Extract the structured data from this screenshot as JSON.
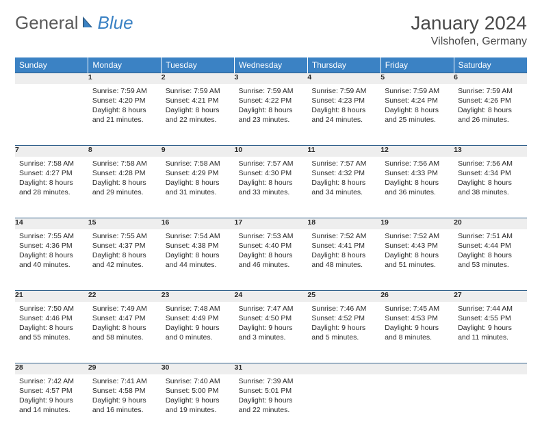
{
  "brand": {
    "general": "General",
    "blue": "Blue"
  },
  "title": "January 2024",
  "location": "Vilshofen, Germany",
  "colors": {
    "header_bg": "#3b82c4",
    "header_text": "#ffffff",
    "daynum_bg": "#eeeeee",
    "daynum_text": "#555555",
    "row_border": "#2f5f8a",
    "body_text": "#2a2a2a",
    "title_text": "#4a4a4a",
    "logo_gray": "#5a5a5a",
    "logo_blue": "#3b82c4"
  },
  "typography": {
    "title_fontsize": 28,
    "location_fontsize": 16,
    "header_fontsize": 12,
    "daynum_fontsize": 12,
    "cell_fontsize": 10.5
  },
  "day_names": [
    "Sunday",
    "Monday",
    "Tuesday",
    "Wednesday",
    "Thursday",
    "Friday",
    "Saturday"
  ],
  "weeks": [
    {
      "days": [
        {
          "num": "",
          "sunrise": "",
          "sunset": "",
          "daylight": ""
        },
        {
          "num": "1",
          "sunrise": "Sunrise: 7:59 AM",
          "sunset": "Sunset: 4:20 PM",
          "daylight": "Daylight: 8 hours and 21 minutes."
        },
        {
          "num": "2",
          "sunrise": "Sunrise: 7:59 AM",
          "sunset": "Sunset: 4:21 PM",
          "daylight": "Daylight: 8 hours and 22 minutes."
        },
        {
          "num": "3",
          "sunrise": "Sunrise: 7:59 AM",
          "sunset": "Sunset: 4:22 PM",
          "daylight": "Daylight: 8 hours and 23 minutes."
        },
        {
          "num": "4",
          "sunrise": "Sunrise: 7:59 AM",
          "sunset": "Sunset: 4:23 PM",
          "daylight": "Daylight: 8 hours and 24 minutes."
        },
        {
          "num": "5",
          "sunrise": "Sunrise: 7:59 AM",
          "sunset": "Sunset: 4:24 PM",
          "daylight": "Daylight: 8 hours and 25 minutes."
        },
        {
          "num": "6",
          "sunrise": "Sunrise: 7:59 AM",
          "sunset": "Sunset: 4:26 PM",
          "daylight": "Daylight: 8 hours and 26 minutes."
        }
      ]
    },
    {
      "days": [
        {
          "num": "7",
          "sunrise": "Sunrise: 7:58 AM",
          "sunset": "Sunset: 4:27 PM",
          "daylight": "Daylight: 8 hours and 28 minutes."
        },
        {
          "num": "8",
          "sunrise": "Sunrise: 7:58 AM",
          "sunset": "Sunset: 4:28 PM",
          "daylight": "Daylight: 8 hours and 29 minutes."
        },
        {
          "num": "9",
          "sunrise": "Sunrise: 7:58 AM",
          "sunset": "Sunset: 4:29 PM",
          "daylight": "Daylight: 8 hours and 31 minutes."
        },
        {
          "num": "10",
          "sunrise": "Sunrise: 7:57 AM",
          "sunset": "Sunset: 4:30 PM",
          "daylight": "Daylight: 8 hours and 33 minutes."
        },
        {
          "num": "11",
          "sunrise": "Sunrise: 7:57 AM",
          "sunset": "Sunset: 4:32 PM",
          "daylight": "Daylight: 8 hours and 34 minutes."
        },
        {
          "num": "12",
          "sunrise": "Sunrise: 7:56 AM",
          "sunset": "Sunset: 4:33 PM",
          "daylight": "Daylight: 8 hours and 36 minutes."
        },
        {
          "num": "13",
          "sunrise": "Sunrise: 7:56 AM",
          "sunset": "Sunset: 4:34 PM",
          "daylight": "Daylight: 8 hours and 38 minutes."
        }
      ]
    },
    {
      "days": [
        {
          "num": "14",
          "sunrise": "Sunrise: 7:55 AM",
          "sunset": "Sunset: 4:36 PM",
          "daylight": "Daylight: 8 hours and 40 minutes."
        },
        {
          "num": "15",
          "sunrise": "Sunrise: 7:55 AM",
          "sunset": "Sunset: 4:37 PM",
          "daylight": "Daylight: 8 hours and 42 minutes."
        },
        {
          "num": "16",
          "sunrise": "Sunrise: 7:54 AM",
          "sunset": "Sunset: 4:38 PM",
          "daylight": "Daylight: 8 hours and 44 minutes."
        },
        {
          "num": "17",
          "sunrise": "Sunrise: 7:53 AM",
          "sunset": "Sunset: 4:40 PM",
          "daylight": "Daylight: 8 hours and 46 minutes."
        },
        {
          "num": "18",
          "sunrise": "Sunrise: 7:52 AM",
          "sunset": "Sunset: 4:41 PM",
          "daylight": "Daylight: 8 hours and 48 minutes."
        },
        {
          "num": "19",
          "sunrise": "Sunrise: 7:52 AM",
          "sunset": "Sunset: 4:43 PM",
          "daylight": "Daylight: 8 hours and 51 minutes."
        },
        {
          "num": "20",
          "sunrise": "Sunrise: 7:51 AM",
          "sunset": "Sunset: 4:44 PM",
          "daylight": "Daylight: 8 hours and 53 minutes."
        }
      ]
    },
    {
      "days": [
        {
          "num": "21",
          "sunrise": "Sunrise: 7:50 AM",
          "sunset": "Sunset: 4:46 PM",
          "daylight": "Daylight: 8 hours and 55 minutes."
        },
        {
          "num": "22",
          "sunrise": "Sunrise: 7:49 AM",
          "sunset": "Sunset: 4:47 PM",
          "daylight": "Daylight: 8 hours and 58 minutes."
        },
        {
          "num": "23",
          "sunrise": "Sunrise: 7:48 AM",
          "sunset": "Sunset: 4:49 PM",
          "daylight": "Daylight: 9 hours and 0 minutes."
        },
        {
          "num": "24",
          "sunrise": "Sunrise: 7:47 AM",
          "sunset": "Sunset: 4:50 PM",
          "daylight": "Daylight: 9 hours and 3 minutes."
        },
        {
          "num": "25",
          "sunrise": "Sunrise: 7:46 AM",
          "sunset": "Sunset: 4:52 PM",
          "daylight": "Daylight: 9 hours and 5 minutes."
        },
        {
          "num": "26",
          "sunrise": "Sunrise: 7:45 AM",
          "sunset": "Sunset: 4:53 PM",
          "daylight": "Daylight: 9 hours and 8 minutes."
        },
        {
          "num": "27",
          "sunrise": "Sunrise: 7:44 AM",
          "sunset": "Sunset: 4:55 PM",
          "daylight": "Daylight: 9 hours and 11 minutes."
        }
      ]
    },
    {
      "days": [
        {
          "num": "28",
          "sunrise": "Sunrise: 7:42 AM",
          "sunset": "Sunset: 4:57 PM",
          "daylight": "Daylight: 9 hours and 14 minutes."
        },
        {
          "num": "29",
          "sunrise": "Sunrise: 7:41 AM",
          "sunset": "Sunset: 4:58 PM",
          "daylight": "Daylight: 9 hours and 16 minutes."
        },
        {
          "num": "30",
          "sunrise": "Sunrise: 7:40 AM",
          "sunset": "Sunset: 5:00 PM",
          "daylight": "Daylight: 9 hours and 19 minutes."
        },
        {
          "num": "31",
          "sunrise": "Sunrise: 7:39 AM",
          "sunset": "Sunset: 5:01 PM",
          "daylight": "Daylight: 9 hours and 22 minutes."
        },
        {
          "num": "",
          "sunrise": "",
          "sunset": "",
          "daylight": ""
        },
        {
          "num": "",
          "sunrise": "",
          "sunset": "",
          "daylight": ""
        },
        {
          "num": "",
          "sunrise": "",
          "sunset": "",
          "daylight": ""
        }
      ]
    }
  ]
}
